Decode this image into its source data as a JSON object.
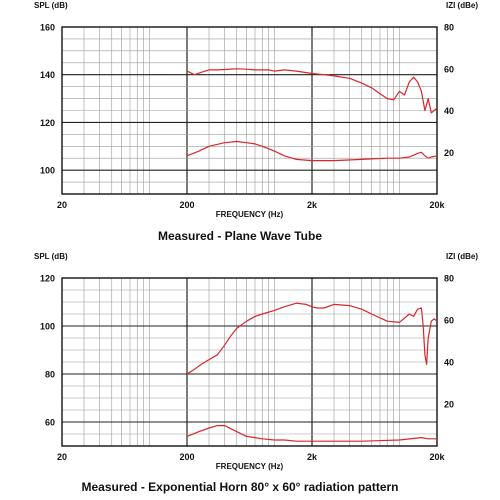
{
  "chart_data": [
    {
      "type": "line",
      "title": "Measured - Plane Wave Tube",
      "xlabel": "FREQUENCY (Hz)",
      "ylabel_left": "SPL (dB)",
      "ylabel_right": "IZI (dBe)",
      "x_scale": "log",
      "xlim": [
        20,
        20000
      ],
      "ylim_left": [
        90,
        160
      ],
      "ylim_right": [
        0,
        80
      ],
      "x_ticks": [
        {
          "v": 20,
          "label": "20"
        },
        {
          "v": 200,
          "label": "200"
        },
        {
          "v": 2000,
          "label": "2k"
        },
        {
          "v": 20000,
          "label": "20k"
        }
      ],
      "y_ticks_left": [
        100,
        120,
        140,
        160
      ],
      "y_ticks_right": [
        20,
        40,
        60,
        80
      ],
      "grid": true,
      "series": [
        {
          "axis": "left",
          "color": "#d9262c",
          "x": [
            200,
            230,
            260,
            300,
            350,
            400,
            500,
            600,
            700,
            900,
            1000,
            1200,
            1500,
            2000,
            2500,
            3000,
            4000,
            5000,
            6000,
            7000,
            8000,
            9000,
            10000,
            11000,
            12000,
            13000,
            14000,
            15000,
            16000,
            17000,
            18000,
            19000,
            20000
          ],
          "y": [
            141.5,
            140,
            141,
            142,
            142,
            142.2,
            142.5,
            142.3,
            142,
            142,
            141.5,
            142,
            141.5,
            140.5,
            140,
            139.5,
            138.5,
            136.5,
            134.5,
            132,
            130,
            129.5,
            133,
            131.5,
            137,
            139,
            137,
            133,
            125,
            130,
            124,
            125,
            126
          ]
        },
        {
          "axis": "left",
          "color": "#d9262c",
          "x": [
            200,
            250,
            300,
            400,
            500,
            600,
            700,
            800,
            1000,
            1200,
            1500,
            2000,
            3000,
            5000,
            8000,
            10000,
            12000,
            14000,
            15000,
            16000,
            17000,
            18000,
            20000
          ],
          "y": [
            106,
            108,
            110,
            111.5,
            112,
            111.5,
            111,
            110,
            108,
            106,
            104.5,
            104,
            104,
            104.5,
            105,
            105,
            105.5,
            107,
            107.5,
            106,
            105,
            105.5,
            106
          ]
        }
      ]
    },
    {
      "type": "line",
      "title": "Measured - Exponential Horn 80° x 60° radiation pattern",
      "xlabel": "FREQUENCY (Hz)",
      "ylabel_left": "SPL (dB)",
      "ylabel_right": "IZI (dBe)",
      "x_scale": "log",
      "xlim": [
        20,
        20000
      ],
      "ylim_left": [
        50,
        120
      ],
      "ylim_right": [
        0,
        80
      ],
      "x_ticks": [
        {
          "v": 20,
          "label": "20"
        },
        {
          "v": 200,
          "label": "200"
        },
        {
          "v": 2000,
          "label": "2k"
        },
        {
          "v": 20000,
          "label": "20k"
        }
      ],
      "y_ticks_left": [
        60,
        80,
        100,
        120
      ],
      "y_ticks_right": [
        20,
        40,
        60,
        80
      ],
      "grid": true,
      "series": [
        {
          "axis": "left",
          "color": "#d9262c",
          "x": [
            200,
            230,
            260,
            300,
            350,
            400,
            450,
            500,
            600,
            700,
            800,
            1000,
            1200,
            1500,
            1800,
            2000,
            2200,
            2500,
            3000,
            4000,
            5000,
            6000,
            8000,
            10000,
            12000,
            13000,
            14000,
            15000,
            15500,
            16000,
            16500,
            17000,
            18000,
            19000,
            20000
          ],
          "y": [
            80,
            82,
            84,
            86,
            88,
            92,
            96,
            99,
            102,
            104,
            105,
            106.5,
            108,
            109.5,
            109,
            108,
            107.5,
            107.5,
            109,
            108.5,
            107,
            105,
            102,
            101.5,
            105,
            104,
            107,
            107.5,
            100,
            88,
            84,
            95,
            102,
            103,
            102
          ]
        },
        {
          "axis": "left",
          "color": "#d9262c",
          "x": [
            200,
            250,
            300,
            350,
            400,
            500,
            600,
            700,
            800,
            1000,
            1200,
            1500,
            2000,
            3000,
            5000,
            10000,
            15000,
            17000,
            20000
          ],
          "y": [
            54,
            56,
            57.5,
            58.5,
            58.5,
            56,
            54,
            53.5,
            53,
            52.5,
            52.5,
            52,
            52,
            52,
            52,
            52.5,
            53.5,
            53,
            53
          ]
        }
      ]
    }
  ]
}
